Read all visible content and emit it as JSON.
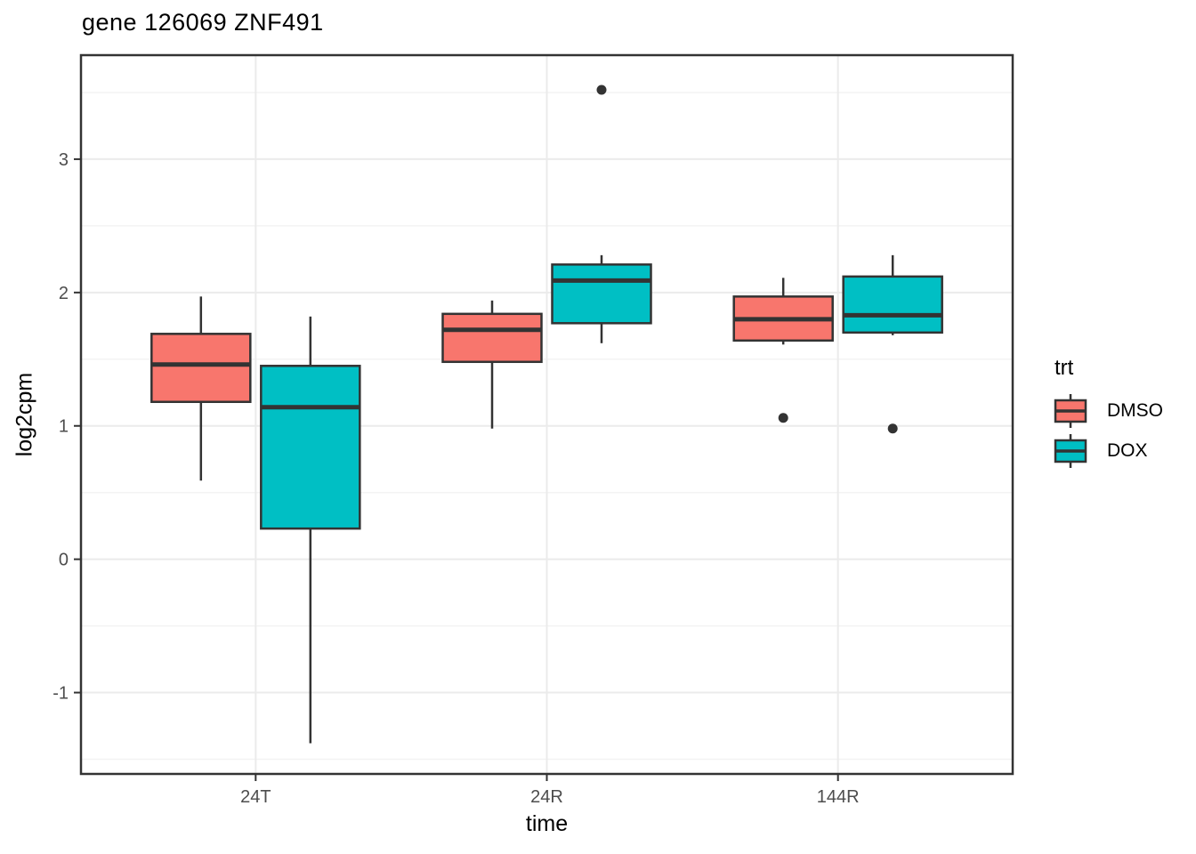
{
  "chart_data": {
    "type": "boxplot",
    "title": "gene 126069 ZNF491",
    "xlabel": "time",
    "ylabel": "log2cpm",
    "categories": [
      "24T",
      "24R",
      "144R"
    ],
    "ylim": [
      -1.61,
      3.78
    ],
    "y_ticks": [
      3,
      2,
      1,
      0,
      -1
    ],
    "y_minor_ticks": [
      3.5,
      2.5,
      1.5,
      0.5,
      -0.5,
      -1.5
    ],
    "grid": "on",
    "legend": {
      "title": "trt",
      "position": "right",
      "entries": [
        {
          "name": "DMSO",
          "color": "#F8766D"
        },
        {
          "name": "DOX",
          "color": "#00BFC4"
        }
      ]
    },
    "series": [
      {
        "name": "DMSO",
        "color": "#F8766D",
        "boxes": [
          {
            "category": "24T",
            "whisker_low": 0.59,
            "q1": 1.18,
            "median": 1.46,
            "q3": 1.69,
            "whisker_high": 1.97,
            "outliers": []
          },
          {
            "category": "24R",
            "whisker_low": 0.98,
            "q1": 1.48,
            "median": 1.72,
            "q3": 1.84,
            "whisker_high": 1.94,
            "outliers": []
          },
          {
            "category": "144R",
            "whisker_low": 1.61,
            "q1": 1.64,
            "median": 1.8,
            "q3": 1.97,
            "whisker_high": 2.11,
            "outliers": [
              1.06
            ]
          }
        ]
      },
      {
        "name": "DOX",
        "color": "#00BFC4",
        "boxes": [
          {
            "category": "24T",
            "whisker_low": -1.38,
            "q1": 0.23,
            "median": 1.14,
            "q3": 1.45,
            "whisker_high": 1.82,
            "outliers": []
          },
          {
            "category": "24R",
            "whisker_low": 1.62,
            "q1": 1.77,
            "median": 2.09,
            "q3": 2.21,
            "whisker_high": 2.28,
            "outliers": [
              3.52
            ]
          },
          {
            "category": "144R",
            "whisker_low": 1.68,
            "q1": 1.7,
            "median": 1.83,
            "q3": 2.12,
            "whisker_high": 2.28,
            "outliers": [
              0.98
            ]
          }
        ]
      }
    ],
    "colors": {
      "panel_border": "#333333",
      "box_outline": "#333333",
      "outlier": "#333333",
      "grid_major": "#EBEBEB",
      "grid_minor": "#F3F3F3",
      "tick_mark": "#333333",
      "axis_text": "#4D4D4D"
    }
  }
}
